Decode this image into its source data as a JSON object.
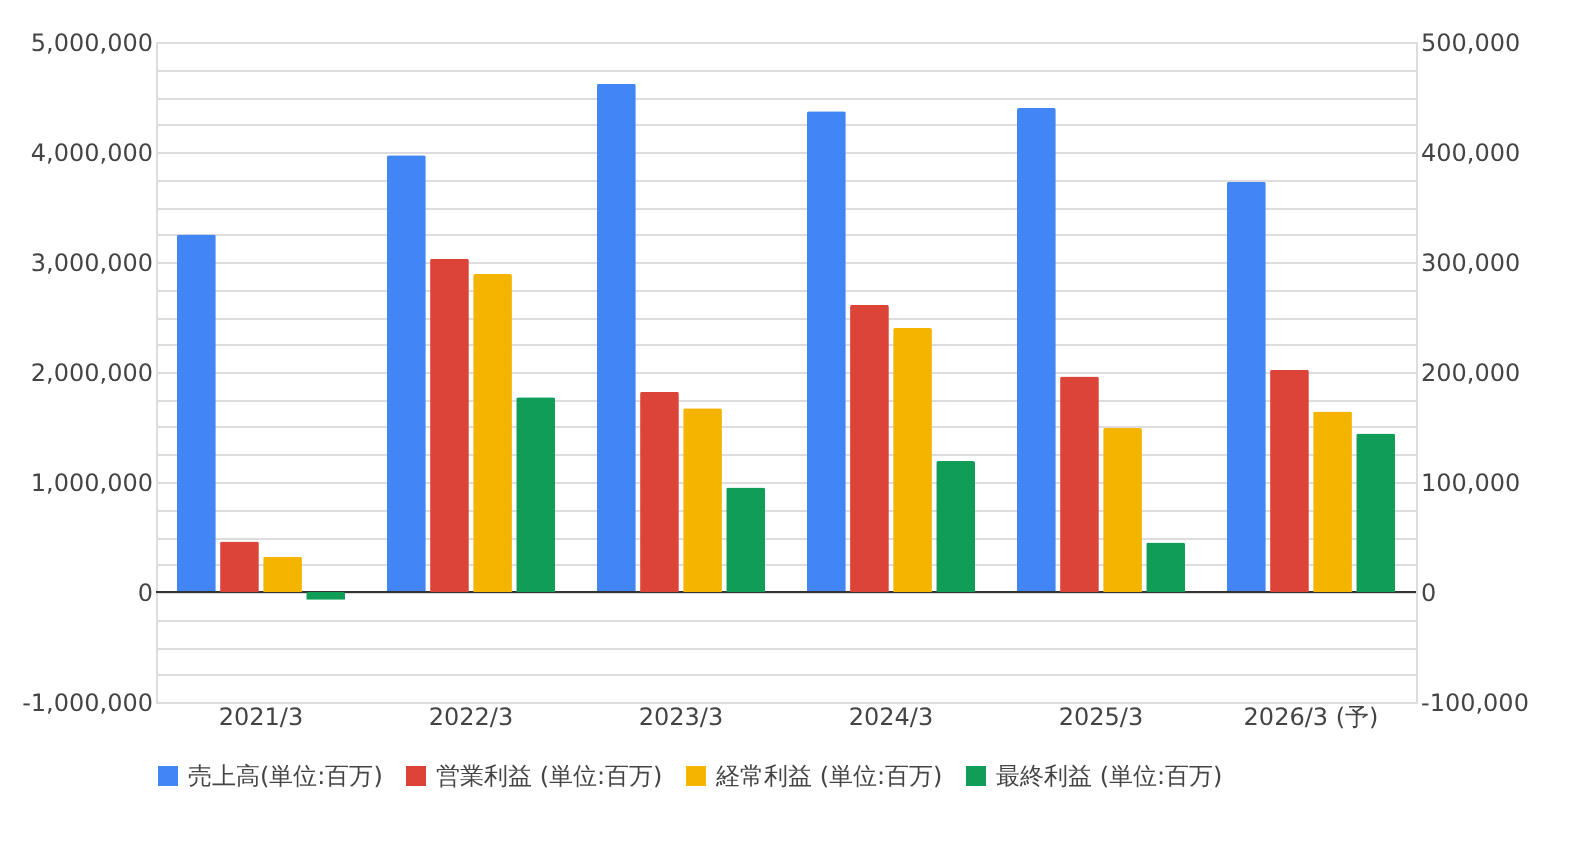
{
  "chart_data": {
    "type": "bar",
    "categories": [
      "2021/3",
      "2022/3",
      "2023/3",
      "2024/3",
      "2025/3",
      "2026/3 (予)"
    ],
    "series": [
      {
        "name": "売上高(単位:百万)",
        "color": "#4285f4",
        "values": [
          3250000,
          3970000,
          4620000,
          4370000,
          4400000,
          3730000
        ]
      },
      {
        "name": "営業利益 (単位:百万)",
        "color": "#db4437",
        "axis": "y2",
        "values": [
          46000,
          303000,
          182000,
          261000,
          196000,
          202000
        ]
      },
      {
        "name": "経常利益 (単位:百万)",
        "color": "#f4b400",
        "axis": "y2",
        "values": [
          32000,
          289000,
          167000,
          240000,
          149000,
          164000
        ]
      },
      {
        "name": "最終利益 (単位:百万)",
        "color": "#0f9d58",
        "axis": "y2",
        "values": [
          -7000,
          177000,
          95000,
          119000,
          45000,
          144000
        ]
      }
    ],
    "ylim": [
      -1000000,
      5000000
    ],
    "yticks": [
      {
        "value": -1000000,
        "label": "-1,000,000"
      },
      {
        "value": -750000,
        "label": null
      },
      {
        "value": -500000,
        "label": null
      },
      {
        "value": -250000,
        "label": null
      },
      0,
      {
        "value": 250000,
        "label": null
      },
      {
        "value": 500000,
        "label": null
      },
      {
        "value": 750000,
        "label": null
      },
      {
        "value": 1000000,
        "label": "1,000,000"
      },
      {
        "value": 1250000,
        "label": null
      },
      {
        "value": 1500000,
        "label": null
      },
      {
        "value": 1750000,
        "label": null
      },
      {
        "value": 2000000,
        "label": "2,000,000"
      },
      {
        "value": 2250000,
        "label": null
      },
      {
        "value": 2500000,
        "label": null
      },
      {
        "value": 2750000,
        "label": null
      },
      {
        "value": 3000000,
        "label": "3,000,000"
      },
      {
        "value": 3250000,
        "label": null
      },
      {
        "value": 3500000,
        "label": null
      },
      {
        "value": 3750000,
        "label": null
      },
      {
        "value": 4000000,
        "label": "4,000,000"
      },
      {
        "value": 4250000,
        "label": null
      },
      {
        "value": 4500000,
        "label": null
      },
      {
        "value": 4750000,
        "label": null
      },
      {
        "value": 5000000,
        "label": "5,000,000"
      }
    ],
    "y2lim": [
      -100000,
      500000
    ],
    "y2ticks": [
      {
        "value": -100000,
        "label": "-100,000"
      },
      0,
      {
        "value": 100000,
        "label": "100,000"
      },
      {
        "value": 200000,
        "label": "200,000"
      },
      {
        "value": 300000,
        "label": "300,000"
      },
      {
        "value": 400000,
        "label": "400,000"
      },
      {
        "value": 500000,
        "label": "500,000"
      }
    ],
    "grid": true,
    "legend": "bottom"
  }
}
